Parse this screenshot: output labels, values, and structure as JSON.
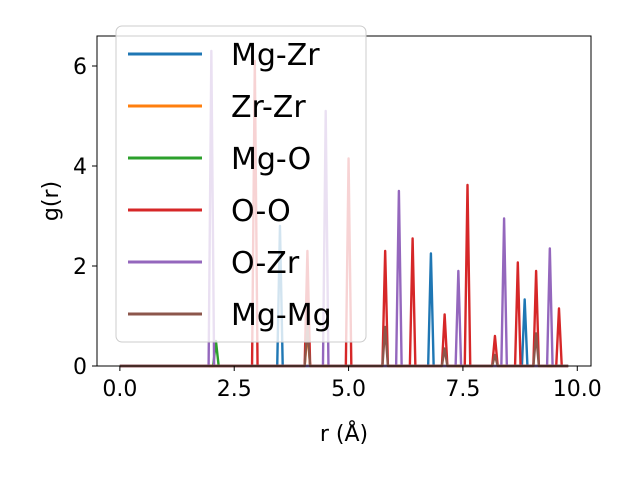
{
  "chart_data": {
    "type": "line",
    "xlabel": "r (Å)",
    "ylabel": "g(r)",
    "xlim": [
      -0.5,
      10.3
    ],
    "ylim": [
      0,
      6.6
    ],
    "xticks": [
      0.0,
      2.5,
      5.0,
      7.5,
      10.0
    ],
    "xtick_labels": [
      "0.0",
      "2.5",
      "5.0",
      "7.5",
      "10.0"
    ],
    "yticks": [
      0,
      2,
      4,
      6
    ],
    "ytick_labels": [
      "0",
      "2",
      "4",
      "6"
    ],
    "grid": false,
    "legend_position": "upper-left",
    "peak_half_width": 0.06,
    "r_max": 9.8,
    "series": [
      {
        "name": "Mg-Zr",
        "color": "#1f77b4",
        "peaks": [
          [
            3.5,
            2.8
          ],
          [
            6.8,
            2.25
          ],
          [
            8.85,
            1.33
          ]
        ]
      },
      {
        "name": "Zr-Zr",
        "color": "#ff7f0e",
        "peaks": [
          [
            4.1,
            0.7
          ]
        ]
      },
      {
        "name": "Mg-O",
        "color": "#2ca02c",
        "peaks": [
          [
            2.1,
            0.5
          ]
        ]
      },
      {
        "name": "O-O",
        "color": "#d62728",
        "peaks": [
          [
            2.95,
            6.1
          ],
          [
            4.1,
            2.3
          ],
          [
            5.0,
            4.15
          ],
          [
            5.8,
            2.3
          ],
          [
            6.4,
            2.55
          ],
          [
            7.1,
            1.03
          ],
          [
            7.6,
            3.62
          ],
          [
            8.2,
            0.6
          ],
          [
            8.7,
            2.07
          ],
          [
            9.1,
            1.9
          ],
          [
            9.6,
            1.15
          ]
        ]
      },
      {
        "name": "O-Zr",
        "color": "#9467bd",
        "peaks": [
          [
            2.0,
            6.3
          ],
          [
            4.5,
            5.1
          ],
          [
            6.1,
            3.5
          ],
          [
            7.4,
            1.9
          ],
          [
            8.4,
            2.95
          ],
          [
            9.4,
            2.35
          ]
        ]
      },
      {
        "name": "Mg-Mg",
        "color": "#8c564b",
        "peaks": [
          [
            4.1,
            0.8
          ],
          [
            5.8,
            0.78
          ],
          [
            7.1,
            0.35
          ],
          [
            8.2,
            0.22
          ],
          [
            9.1,
            0.65
          ]
        ]
      }
    ]
  }
}
